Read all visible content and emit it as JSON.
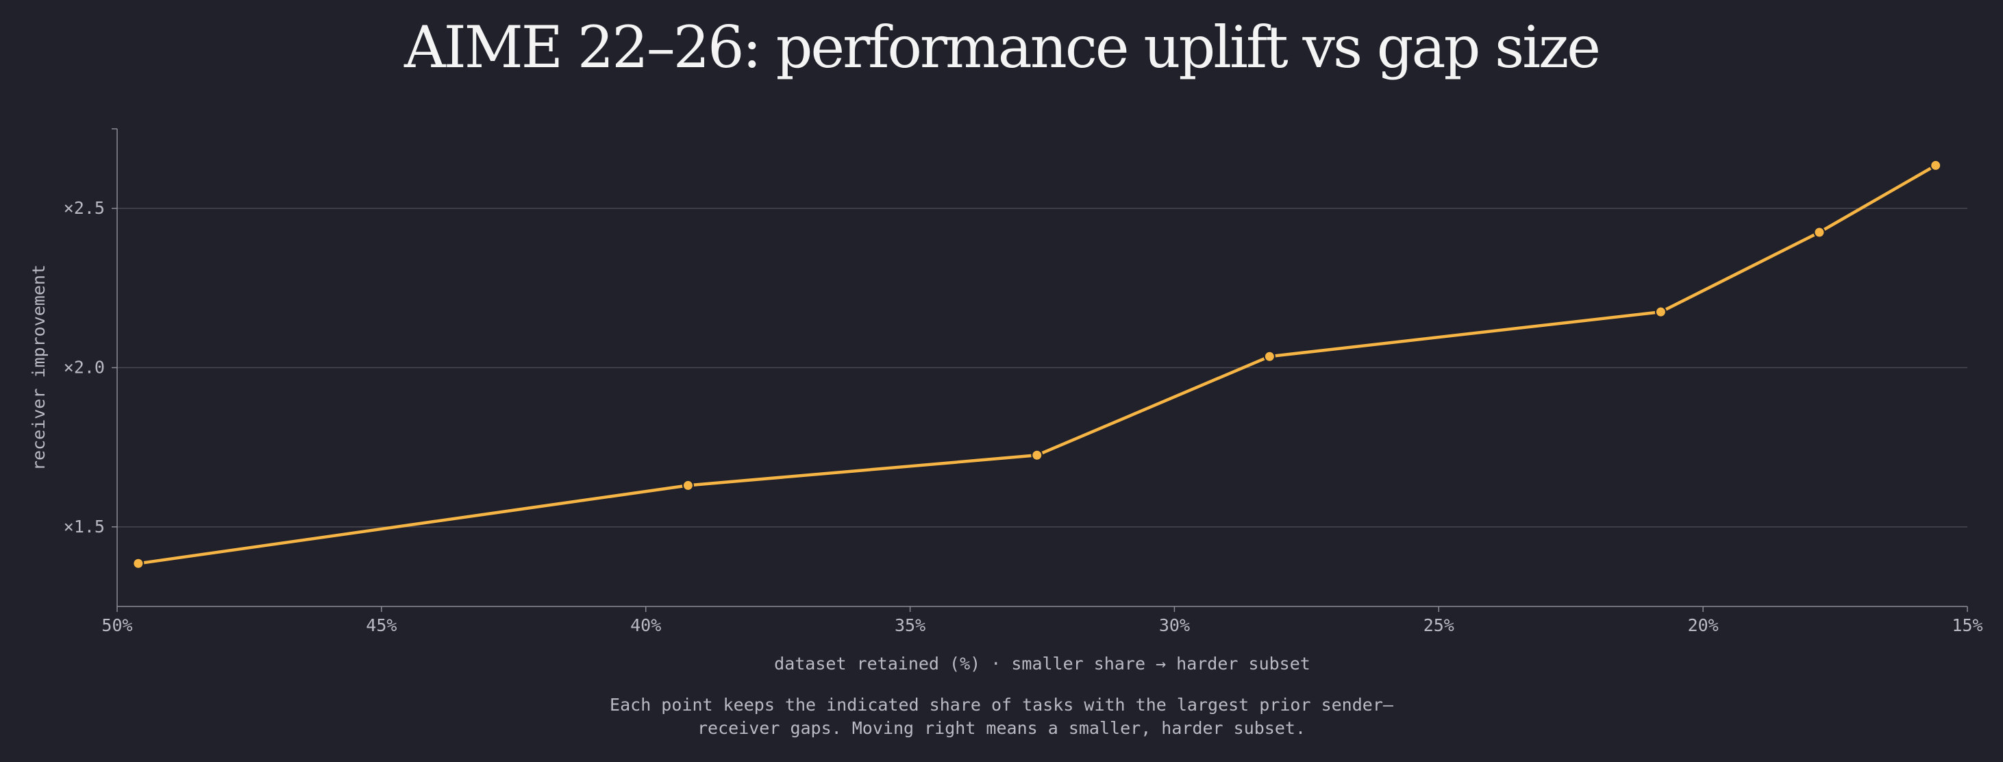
{
  "chart_data": {
    "type": "line",
    "title": "AIME 22–26: performance uplift vs gap size",
    "xlabel": "dataset retained (%) · smaller share → harder subset",
    "ylabel": "receiver improvement",
    "caption": [
      "Each point keeps the indicated share of tasks with the largest prior sender—",
      "receiver gaps. Moving right means a smaller, harder subset."
    ],
    "x_axis": {
      "reversed": true,
      "range": [
        50,
        15
      ],
      "ticks": [
        50,
        45,
        40,
        35,
        30,
        25,
        20,
        15
      ],
      "tick_labels": [
        "50%",
        "45%",
        "40%",
        "35%",
        "30%",
        "25%",
        "20%",
        "15%"
      ]
    },
    "y_axis": {
      "range": [
        1.25,
        2.75
      ],
      "ticks": [
        1.5,
        2.0,
        2.5
      ],
      "tick_labels": [
        "×1.5",
        "×2.0",
        "×2.5"
      ]
    },
    "grid": "horizontal",
    "series": [
      {
        "color": "#f6b544",
        "x": [
          49.6,
          39.2,
          32.6,
          28.2,
          20.8,
          17.8,
          15.6
        ],
        "y": [
          1.385,
          1.63,
          1.725,
          2.035,
          2.175,
          2.425,
          2.635
        ]
      }
    ],
    "colors": {
      "background": "#20212a",
      "line": "#f6b544",
      "grid": "#474852",
      "axis": "#8b8c95",
      "text": "#b9bac3",
      "title": "#f4f4f4"
    }
  }
}
